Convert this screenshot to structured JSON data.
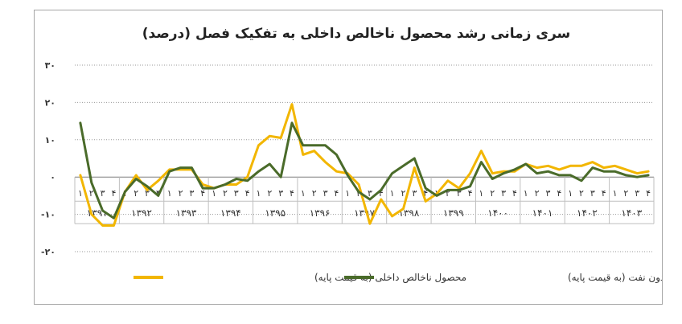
{
  "chart_data": {
    "type": "line",
    "title": "سری زمانی رشد محصول ناخالص داخلی به تفکیک فصل (درصد)",
    "ylim": [
      -20,
      30
    ],
    "yticks": [
      "۳۰",
      "۲۰",
      "۱۰",
      "۰",
      "-۱۰",
      "-۲۰"
    ],
    "ytick_values": [
      30,
      20,
      10,
      0,
      -10,
      -20
    ],
    "grid": "horizontal-dotted",
    "legend_position": "bottom",
    "quarter_labels": [
      "۱",
      "۲",
      "۳",
      "۴"
    ],
    "years": [
      "۱۳۹۱",
      "۱۳۹۲",
      "۱۳۹۳",
      "۱۳۹۴",
      "۱۳۹۵",
      "۱۳۹۶",
      "۱۳۹۷",
      "۱۳۹۸",
      "۱۳۹۹",
      "۱۴۰۰",
      "۱۴۰۱",
      "۱۴۰۲",
      "۱۴۰۳"
    ],
    "series": [
      {
        "name": "محصول ناخالص داخلی (به قیمت پایه)",
        "color": "#f2b600",
        "values": [
          0.5,
          -10,
          -13,
          -13,
          -4,
          0.5,
          -3.5,
          -1,
          2,
          2,
          2,
          -2,
          -3,
          -2,
          -2,
          0,
          8.5,
          11,
          10.5,
          19.5,
          6,
          7,
          4,
          1.5,
          1,
          -2,
          -12.5,
          -6,
          -10.5,
          -8.5,
          2.5,
          -6.5,
          -4.5,
          -1,
          -3,
          1,
          7,
          1,
          1.5,
          1.5,
          3.5,
          2.5,
          3,
          2,
          3,
          3,
          4,
          2.5,
          3,
          2,
          1,
          1.5
        ]
      },
      {
        "name": "محصول ناخالص داخلی بدون نفت (به قیمت پایه)",
        "color": "#4a6b2a",
        "values": [
          14.5,
          -1.5,
          -9,
          -11,
          -4,
          -0.5,
          -2.5,
          -5,
          1.5,
          2.5,
          2.5,
          -3,
          -3,
          -2,
          -0.5,
          -1,
          1.5,
          3.5,
          0,
          14.5,
          8.5,
          8.5,
          8.5,
          6,
          0.5,
          -4,
          -6,
          -3.5,
          1,
          3,
          5,
          -3,
          -5,
          -3.5,
          -3.5,
          -2.5,
          4,
          -0.5,
          1,
          2,
          3.5,
          1,
          1.5,
          0.5,
          0.5,
          -1,
          2.5,
          1.5,
          1.5,
          0.5,
          0,
          0.5
        ]
      }
    ]
  }
}
